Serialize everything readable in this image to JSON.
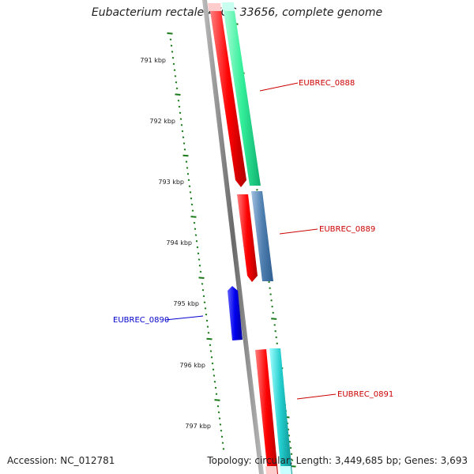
{
  "title": "Eubacterium rectale ATCC 33656, complete genome",
  "accession": "Accession: NC_012781",
  "topology": "Topology: circular; Length: 3,449,685 bp; Genes: 3,693",
  "ruler": {
    "labels": [
      "791 kbp",
      "792 kbp",
      "793 kbp",
      "794 kbp",
      "795 kbp",
      "796 kbp",
      "797 kbp"
    ],
    "tick_color": "#1a7a1a"
  },
  "genes": [
    {
      "name": "EUBREC_0888",
      "label_color": "#cc0000",
      "fill": "#ff0000",
      "partner_fill": "#33ee99"
    },
    {
      "name": "EUBREC_0889",
      "label_color": "#cc0000",
      "fill": "#ff0000",
      "partner_fill": "#4f7fb0"
    },
    {
      "name": "EUBREC_0890",
      "label_color": "#0000cc",
      "fill": "#0000ee"
    },
    {
      "name": "EUBREC_0891",
      "label_color": "#cc0000",
      "fill": "#ff0000",
      "partner_fill": "#22cccc"
    }
  ],
  "backbone_color": "#7a7a7a"
}
